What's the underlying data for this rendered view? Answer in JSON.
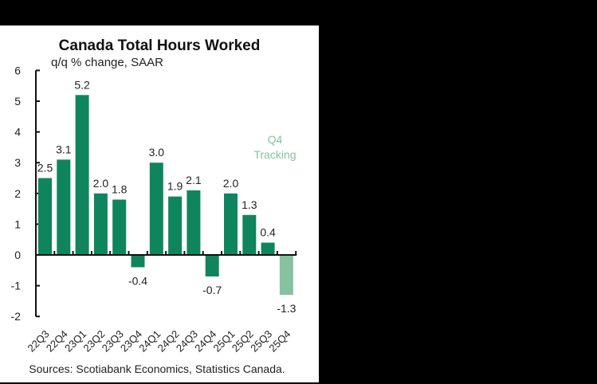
{
  "chart_data": {
    "type": "bar",
    "title": "Canada Total Hours Worked",
    "subtitle": "q/q % change, SAAR",
    "xlabel": "",
    "ylabel": "",
    "ylim": [
      -2,
      6
    ],
    "yticks": [
      6,
      5,
      4,
      3,
      2,
      1,
      0,
      -1,
      -2
    ],
    "grid": false,
    "categories": [
      "22Q3",
      "22Q4",
      "23Q1",
      "23Q2",
      "23Q3",
      "23Q4",
      "24Q1",
      "24Q2",
      "24Q3",
      "24Q4",
      "25Q1",
      "25Q2",
      "25Q3",
      "25Q4"
    ],
    "values": [
      2.5,
      3.1,
      5.2,
      2.0,
      1.8,
      -0.4,
      3.0,
      1.9,
      2.1,
      -0.7,
      2.0,
      1.3,
      0.4,
      -1.3
    ],
    "labels": [
      "2.5",
      "3.1",
      "5.2",
      "2.0",
      "1.8",
      "-0.4",
      "3.0",
      "1.9",
      "2.1",
      "-0.7",
      "2.0",
      "1.3",
      "0.4",
      "-1.3"
    ],
    "tracking_index": 13,
    "annotation": {
      "line1": "Q4",
      "line2": "Tracking"
    },
    "colors": {
      "actual": "#0f855e",
      "tracking": "#86c1a0",
      "annotation": "#86c1a0"
    },
    "source": "Sources: Scotiabank Economics, Statistics Canada."
  }
}
